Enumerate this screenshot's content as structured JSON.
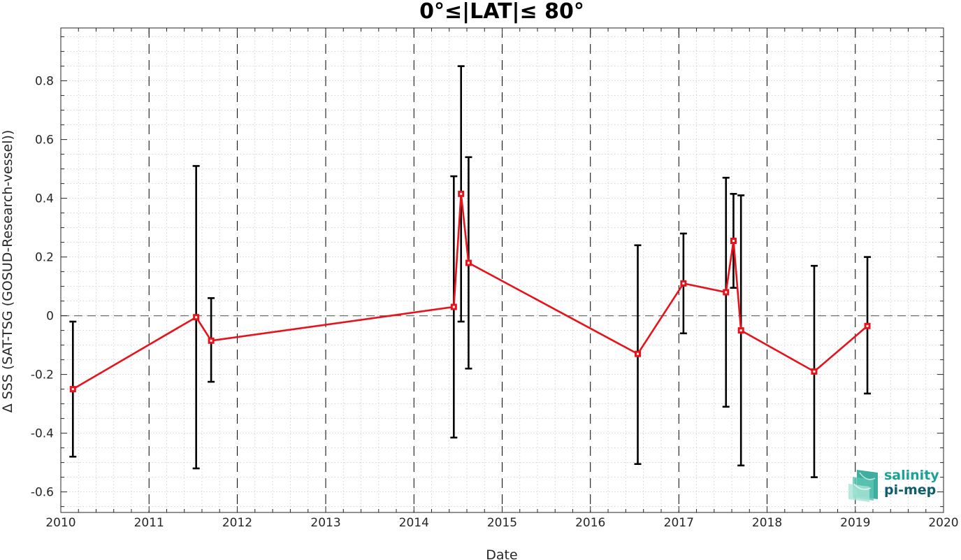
{
  "chart_data": {
    "type": "line",
    "title": "0°≤|LAT|≤ 80°",
    "xlabel": "Date",
    "ylabel": "Δ SSS (SAT-TSG (GOSUD-Research-vessel))",
    "xlim": [
      "2010-01-01",
      "2020-01-01"
    ],
    "ylim": [
      -0.67,
      0.98
    ],
    "x_ticks": [
      "2010",
      "2011",
      "2012",
      "2013",
      "2014",
      "2015",
      "2016",
      "2017",
      "2018",
      "2019",
      "2020"
    ],
    "y_ticks": [
      -0.6,
      -0.4,
      -0.2,
      0,
      0.2,
      0.4,
      0.6,
      0.8
    ],
    "y_tick_labels": [
      "-0.6",
      "-0.4",
      "-0.2",
      "0",
      "0.2",
      "0.4",
      "0.6",
      "0.8"
    ],
    "grid": true,
    "year_lines": "dashed",
    "reference_line_y": 0,
    "line_color": "#e8121b",
    "errorbar_color": "#000000",
    "series": [
      {
        "points": [
          {
            "x": "2010-02-20",
            "y": -0.25,
            "low": -0.48,
            "high": -0.02
          },
          {
            "x": "2011-07-15",
            "y": -0.005,
            "low": -0.52,
            "high": 0.51
          },
          {
            "x": "2011-09-15",
            "y": -0.085,
            "low": -0.225,
            "high": 0.06
          },
          {
            "x": "2014-06-15",
            "y": 0.03,
            "low": -0.415,
            "high": 0.475
          },
          {
            "x": "2014-07-15",
            "y": 0.415,
            "low": -0.02,
            "high": 0.85
          },
          {
            "x": "2014-08-15",
            "y": 0.18,
            "low": -0.18,
            "high": 0.54
          },
          {
            "x": "2016-07-15",
            "y": -0.13,
            "low": -0.505,
            "high": 0.24
          },
          {
            "x": "2017-01-20",
            "y": 0.11,
            "low": -0.06,
            "high": 0.28
          },
          {
            "x": "2017-07-15",
            "y": 0.08,
            "low": -0.31,
            "high": 0.47
          },
          {
            "x": "2017-08-15",
            "y": 0.255,
            "low": 0.095,
            "high": 0.415
          },
          {
            "x": "2017-09-15",
            "y": -0.05,
            "low": -0.51,
            "high": 0.41
          },
          {
            "x": "2018-07-15",
            "y": -0.19,
            "low": -0.55,
            "high": 0.17
          },
          {
            "x": "2019-02-20",
            "y": -0.035,
            "low": -0.265,
            "high": 0.2
          }
        ]
      }
    ]
  },
  "logo": {
    "line1": "salinity",
    "line2": "pi-mep",
    "color1": "#1aa394",
    "color2": "#0f5e6b"
  }
}
